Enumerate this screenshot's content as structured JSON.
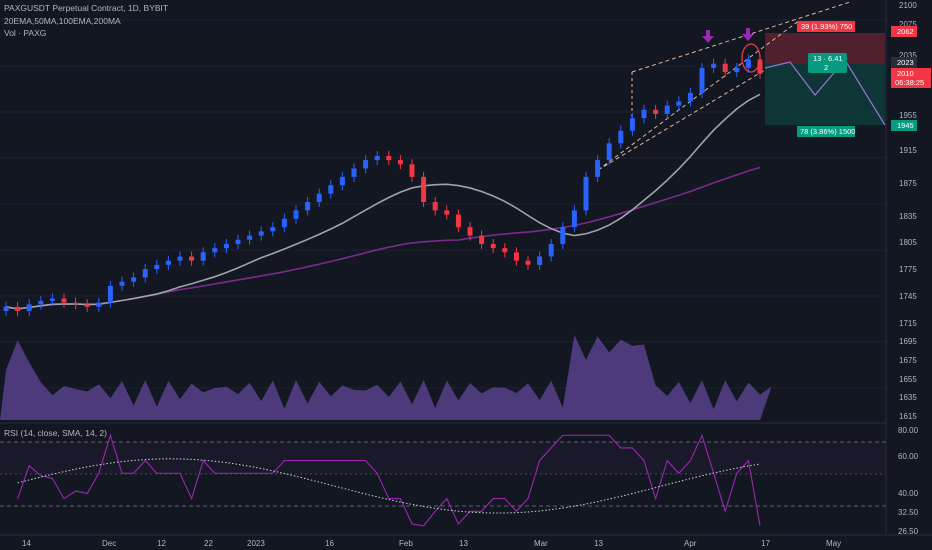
{
  "header": {
    "title": "PAXGUSDT Perpetual Contract, 1D, BYBIT",
    "indicators": "20EMA,50MA,100EMA,200MA",
    "volume": "Vol · PAXG",
    "rsi": "RSI (14, close, SMA, 14, 2)"
  },
  "colors": {
    "background": "#131722",
    "up_candle": "#2962ff",
    "down_candle": "#f23645",
    "ma_gray": "#a0a3ab",
    "ma_purple": "#7b2a8c",
    "rsi_line": "#9c27b0",
    "stop_zone": "#5d2230",
    "target_zone": "#0f3a3a",
    "volume_fill": "#7e57c2"
  },
  "price_axis": {
    "ticks": [
      "2100",
      "2075",
      "2035",
      "1955",
      "1915",
      "1875",
      "1835",
      "1805",
      "1775",
      "1745",
      "1715",
      "1695",
      "1675",
      "1655",
      "1635",
      "1615"
    ],
    "tag_top": "2062",
    "tag_current": "2023",
    "tag_countdown_price": "2010",
    "tag_countdown_time": "06:38:25",
    "tag_bottom": "1945"
  },
  "rsi_axis": {
    "ticks": [
      "80.00",
      "60.00",
      "40.00",
      "32.50",
      "26.50"
    ]
  },
  "time_axis": {
    "ticks": [
      "14",
      "Dec",
      "12",
      "22",
      "2023",
      "16",
      "Feb",
      "13",
      "Mar",
      "13",
      "Apr",
      "17",
      "May"
    ]
  },
  "position_tool": {
    "stop_label": "39 (1.93%) 750",
    "target_label": "78 (3.86%) 1500",
    "ratio_line1": "13 · 6.41",
    "ratio_line2": "2"
  },
  "chart_data": {
    "type": "candlestick",
    "candles_close_approx": [
      1745,
      1740,
      1748,
      1752,
      1755,
      1750,
      1748,
      1745,
      1750,
      1770,
      1775,
      1780,
      1790,
      1795,
      1800,
      1805,
      1800,
      1810,
      1815,
      1820,
      1825,
      1830,
      1835,
      1840,
      1850,
      1860,
      1870,
      1880,
      1890,
      1900,
      1910,
      1920,
      1925,
      1920,
      1915,
      1900,
      1870,
      1860,
      1855,
      1840,
      1830,
      1820,
      1815,
      1810,
      1800,
      1795,
      1805,
      1820,
      1840,
      1860,
      1900,
      1920,
      1940,
      1955,
      1970,
      1980,
      1975,
      1985,
      1990,
      2000,
      2030,
      2035,
      2025,
      2030,
      2040,
      2023
    ],
    "ylim": [
      1610,
      2105
    ],
    "rsi_ylim": [
      24,
      82
    ]
  }
}
